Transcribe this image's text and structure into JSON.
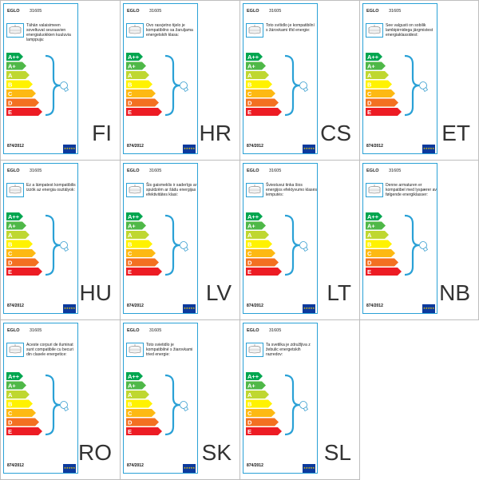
{
  "sheet": {
    "brand": "EGLO",
    "model": "31605",
    "regulation": "874/2012",
    "eu_flag_glyphs": "★★★★★",
    "energy_classes": [
      {
        "label": "A++",
        "color": "#00a650"
      },
      {
        "label": "A+",
        "color": "#4fb848"
      },
      {
        "label": "A",
        "color": "#bfd730"
      },
      {
        "label": "B",
        "color": "#fff200"
      },
      {
        "label": "C",
        "color": "#fdb913"
      },
      {
        "label": "D",
        "color": "#f37021"
      },
      {
        "label": "E",
        "color": "#ed1c24"
      }
    ],
    "brace_color": "#2aa1d6",
    "labels": [
      {
        "code": "FI",
        "text": "Tähän valaisimeen soveltuvat seuraavien energialuokkien kuuluvia lamppuja:"
      },
      {
        "code": "HR",
        "text": "Ovo rasvjetno tijelo je kompatibilno sa žaruljama energetskih klasa:"
      },
      {
        "code": "CS",
        "text": "Toto svítidlo je kompatibilní s žárovkami třid energie:"
      },
      {
        "code": "ET",
        "text": "See valgusti on sobilik lambipirnidega järgmistest energiaklassidest:"
      },
      {
        "code": "HU",
        "text": "Ez a lámpatest kompatibilis izzók az energia osztályok:"
      },
      {
        "code": "LV",
        "text": "Šis gaismeklis ir saderīgs ar spuldzēm ar šādu energijas efektivitātes klasi:"
      },
      {
        "code": "LT",
        "text": "Šviestuvui tinka šios energijos efektyvumo klasės lemputės:"
      },
      {
        "code": "NB",
        "text": "Denne armaturen er kompatibel med lyspærer av følgende energiklasser:"
      },
      {
        "code": "RO",
        "text": "Aceste corpuri de iluminat sunt compatibile cu becuri din clasele energetice:"
      },
      {
        "code": "SK",
        "text": "Toto svietidlo je kompatibilné s žiarovkami tried energie:"
      },
      {
        "code": "SL",
        "text": "Ta svetilka je združljiva z žebulic energetskih razredov:"
      }
    ]
  }
}
